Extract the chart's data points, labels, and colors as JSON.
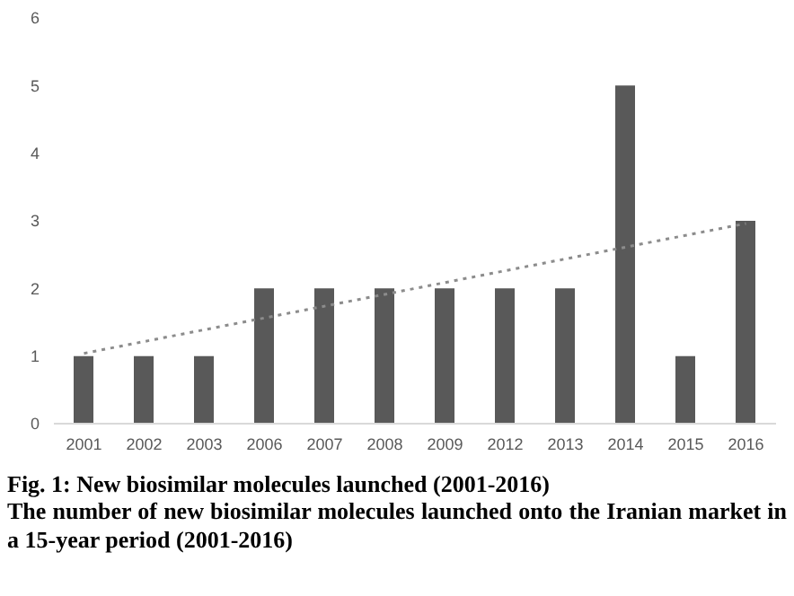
{
  "chart_data": {
    "type": "bar",
    "title": "Fig. 1: New biosimilar molecules launched (2001-2016)",
    "subtitle": "The number of new biosimilar molecules launched onto the Iranian market in a 15-year period (2001-2016)",
    "categories": [
      "2001",
      "2002",
      "2003",
      "2006",
      "2007",
      "2008",
      "2009",
      "2012",
      "2013",
      "2014",
      "2015",
      "2016"
    ],
    "series": [
      {
        "color": "#595959",
        "values": [
          1,
          1,
          1,
          2,
          2,
          2,
          2,
          2,
          2,
          5,
          1,
          3
        ]
      },
      {
        "type": "line",
        "color": "#8c8c8c",
        "line_style": "dotted",
        "values": [
          1.04,
          null,
          null,
          null,
          null,
          null,
          null,
          null,
          null,
          null,
          null,
          2.96
        ]
      }
    ],
    "ylim": [
      0,
      6
    ],
    "yticks": [
      0,
      1,
      2,
      3,
      4,
      5,
      6
    ],
    "grid": false
  }
}
